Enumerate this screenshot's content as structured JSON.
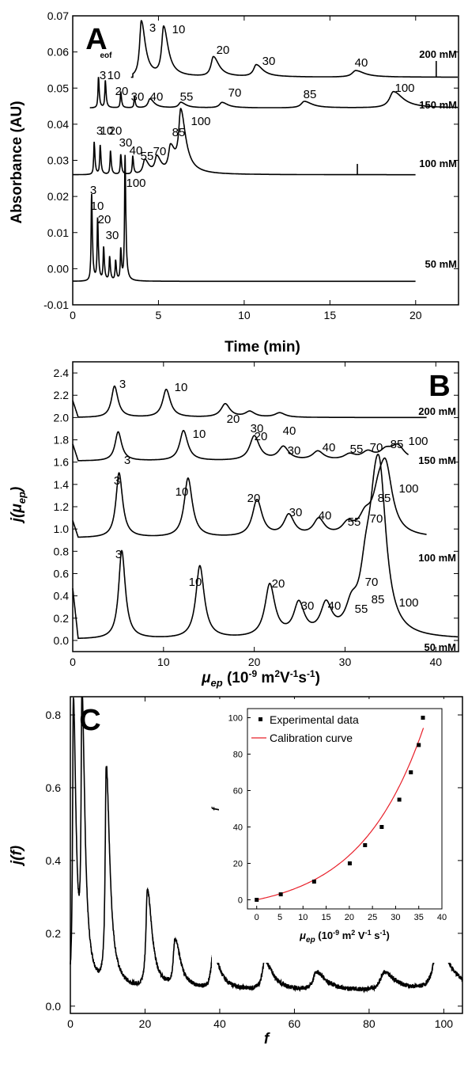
{
  "chart_data": [
    {
      "panel": "A",
      "type": "line",
      "xlabel": "Time (min)",
      "ylabel": "Absorbance (AU)",
      "xlim": [
        0,
        22.5
      ],
      "ylim": [
        -0.01,
        0.07
      ],
      "x_ticks": [
        "0",
        "5",
        "10",
        "15",
        "20"
      ],
      "y_ticks": [
        "-0.01",
        "0.00",
        "0.01",
        "0.02",
        "0.03",
        "0.04",
        "0.05",
        "0.06",
        "0.07"
      ],
      "annotation": "eof",
      "series": [
        {
          "name": "200 mM",
          "baseline": 0.053,
          "x_start": 3.4,
          "x_end": 22.5,
          "peaks": [
            {
              "label": "3",
              "x": 4.0,
              "h": 0.0155
            },
            {
              "label": "10",
              "x": 5.3,
              "h": 0.0135
            },
            {
              "label": "20",
              "x": 8.2,
              "h": 0.0055
            },
            {
              "label": "30",
              "x": 10.7,
              "h": 0.0033
            },
            {
              "label": "40",
              "x": 16.5,
              "h": 0.0018
            }
          ]
        },
        {
          "name": "150 mM",
          "baseline": 0.0445,
          "x_start": 1.0,
          "x_end": 22.5,
          "peaks": [
            {
              "label": "3",
              "x": 1.5,
              "h": 0.0085
            },
            {
              "label": "10",
              "x": 1.9,
              "h": 0.0075
            },
            {
              "label": "20",
              "x": 2.8,
              "h": 0.0045
            },
            {
              "label": "30",
              "x": 3.6,
              "h": 0.003
            },
            {
              "label": "40",
              "x": 4.5,
              "h": 0.0025
            },
            {
              "label": "55",
              "x": 6.3,
              "h": 0.0015
            },
            {
              "label": "70",
              "x": 8.7,
              "h": 0.0015
            },
            {
              "label": "85",
              "x": 13.5,
              "h": 0.0018
            },
            {
              "label": "100",
              "x": 18.7,
              "h": 0.0045
            }
          ]
        },
        {
          "name": "100 mM",
          "baseline": 0.026,
          "x_start": 0,
          "x_end": 20,
          "peaks": [
            {
              "label": "3",
              "x": 1.25,
              "h": 0.009
            },
            {
              "label": "10",
              "x": 1.6,
              "h": 0.008
            },
            {
              "label": "20",
              "x": 2.2,
              "h": 0.0065
            },
            {
              "label": "30",
              "x": 2.8,
              "h": 0.0055
            },
            {
              "label": "40",
              "x": 3.5,
              "h": 0.005
            },
            {
              "label": "55",
              "x": 4.2,
              "h": 0.004
            },
            {
              "label": "70",
              "x": 4.9,
              "h": 0.0045
            },
            {
              "label": "85",
              "x": 5.7,
              "h": 0.007
            },
            {
              "label": "100",
              "x": 6.3,
              "h": 0.0165
            }
          ]
        },
        {
          "name": "50 mM",
          "baseline": -0.0035,
          "x_start": 0,
          "x_end": 20,
          "peaks": [
            {
              "label": "3",
              "x": 1.1,
              "h": 0.024
            },
            {
              "label": "10",
              "x": 1.45,
              "h": 0.017
            },
            {
              "label": "20",
              "x": 1.8,
              "h": 0.009
            },
            {
              "label": "30",
              "x": 2.15,
              "h": 0.0065
            },
            {
              "label": "",
              "x": 2.5,
              "h": 0.0055
            },
            {
              "label": "",
              "x": 2.8,
              "h": 0.0085
            },
            {
              "label": "100",
              "x": 3.05,
              "h": 0.0345
            }
          ]
        }
      ]
    },
    {
      "panel": "B",
      "type": "line",
      "xlabel_main": "μ",
      "xlabel_sub": "ep",
      "xlabel_units": " (10",
      "xlabel_exp": "-9",
      "xlabel_rest": " m",
      "xlabel_rest2": "V",
      "xlabel_rest3": "s",
      "ylabel": "j(μ",
      "ylabel_sub": "ep",
      "ylabel_end": ")",
      "xlim": [
        0,
        42.5
      ],
      "ylim": [
        -0.1,
        2.5
      ],
      "x_ticks": [
        "0",
        "10",
        "20",
        "30",
        "40"
      ],
      "y_ticks": [
        "0.0",
        "0.2",
        "0.4",
        "0.6",
        "0.8",
        "1.0",
        "1.2",
        "1.4",
        "1.6",
        "1.8",
        "2.0",
        "2.2",
        "2.4"
      ],
      "series": [
        {
          "name": "200 mM",
          "baseline": 2.0,
          "x_end": 39,
          "peaks": [
            {
              "label": "3",
              "x": 4.6,
              "h": 0.28
            },
            {
              "label": "10",
              "x": 10.3,
              "h": 0.25
            },
            {
              "label": "20",
              "x": 16.8,
              "h": 0.12
            },
            {
              "label": "30",
              "x": 19.5,
              "h": 0.05
            },
            {
              "label": "40",
              "x": 22.8,
              "h": 0.04
            }
          ]
        },
        {
          "name": "150 mM",
          "baseline": 1.61,
          "x_end": 37,
          "peaks": [
            {
              "label": "3",
              "x": 5.0,
              "h": 0.26
            },
            {
              "label": "10",
              "x": 12.2,
              "h": 0.27
            },
            {
              "label": "20",
              "x": 20.0,
              "h": 0.22
            },
            {
              "label": "30",
              "x": 23.2,
              "h": 0.12
            },
            {
              "label": "40",
              "x": 27.0,
              "h": 0.08
            },
            {
              "label": "55",
              "x": 30.5,
              "h": 0.05
            },
            {
              "label": "70",
              "x": 32.5,
              "h": 0.07
            },
            {
              "label": "85",
              "x": 34.5,
              "h": 0.08
            },
            {
              "label": "100",
              "x": 35.8,
              "h": 0.12
            }
          ]
        },
        {
          "name": "100 mM",
          "baseline": 0.92,
          "x_end": 39,
          "peaks": [
            {
              "label": "3",
              "x": 5.1,
              "h": 0.58
            },
            {
              "label": "10",
              "x": 12.7,
              "h": 0.53
            },
            {
              "label": "20",
              "x": 20.3,
              "h": 0.33
            },
            {
              "label": "30",
              "x": 23.8,
              "h": 0.19
            },
            {
              "label": "40",
              "x": 27.1,
              "h": 0.15
            },
            {
              "label": "55",
              "x": 30.3,
              "h": 0.1
            },
            {
              "label": "70",
              "x": 32.2,
              "h": 0.14
            },
            {
              "label": "85",
              "x": 33.7,
              "h": 0.28
            },
            {
              "label": "100",
              "x": 34.5,
              "h": 0.53
            }
          ]
        },
        {
          "name": "50 mM",
          "baseline": 0.01,
          "x_end": 42.5,
          "peaks": [
            {
              "label": "3",
              "x": 5.4,
              "h": 0.79
            },
            {
              "label": "10",
              "x": 14.0,
              "h": 0.65
            },
            {
              "label": "20",
              "x": 21.7,
              "h": 0.47
            },
            {
              "label": "30",
              "x": 24.9,
              "h": 0.29
            },
            {
              "label": "40",
              "x": 27.9,
              "h": 0.27
            },
            {
              "label": "55",
              "x": 30.7,
              "h": 0.2
            },
            {
              "label": "70",
              "x": 32.3,
              "h": 0.43
            },
            {
              "label": "85",
              "x": 33.3,
              "h": 0.75
            },
            {
              "label": "100",
              "x": 33.9,
              "h": 0.96
            }
          ]
        }
      ]
    },
    {
      "panel": "C",
      "type": "line",
      "xlabel": "f",
      "ylabel": "j(f)",
      "xlim": [
        0,
        105
      ],
      "ylim": [
        -0.02,
        0.85
      ],
      "x_ticks": [
        "0",
        "20",
        "40",
        "60",
        "80",
        "100"
      ],
      "y_ticks": [
        "0.0",
        "0.2",
        "0.4",
        "0.6",
        "0.8"
      ],
      "baseline": 0.04,
      "peaks": [
        {
          "x": 0.8,
          "h": 0.8
        },
        {
          "x": 3.1,
          "h": 0.75
        },
        {
          "x": 9.6,
          "h": 0.6
        },
        {
          "x": 20.6,
          "h": 0.27
        },
        {
          "x": 28.0,
          "h": 0.13
        },
        {
          "x": 38.2,
          "h": 0.1
        },
        {
          "x": 52.0,
          "h": 0.08
        },
        {
          "x": 65.8,
          "h": 0.05
        },
        {
          "x": 83.9,
          "h": 0.05
        },
        {
          "x": 98.2,
          "h": 0.12
        }
      ],
      "inset": {
        "type": "scatter",
        "xlabel_main": "μ",
        "xlabel_sub": "ep",
        "xlabel_units": "  (10",
        "xlabel_exp": "-9",
        "xlabel_rest": " m",
        "xlabel_rest2": " V",
        "xlabel_rest3": " s",
        "ylabel": "f",
        "xlim": [
          -2,
          40
        ],
        "ylim": [
          -5,
          105
        ],
        "x_ticks": [
          "0",
          "5",
          "10",
          "15",
          "20",
          "25",
          "30",
          "35",
          "40"
        ],
        "y_ticks": [
          "0",
          "20",
          "40",
          "60",
          "80",
          "100"
        ],
        "legend": [
          "Experimental data",
          "Calibration curve"
        ],
        "points": [
          {
            "x": 0,
            "y": 0
          },
          {
            "x": 5.2,
            "y": 3
          },
          {
            "x": 12.4,
            "y": 10
          },
          {
            "x": 20.1,
            "y": 20
          },
          {
            "x": 23.4,
            "y": 30
          },
          {
            "x": 27.0,
            "y": 40
          },
          {
            "x": 30.8,
            "y": 55
          },
          {
            "x": 33.3,
            "y": 70
          },
          {
            "x": 35.0,
            "y": 85
          },
          {
            "x": 35.9,
            "y": 100
          }
        ],
        "curve_color": "#e8202a"
      }
    }
  ]
}
